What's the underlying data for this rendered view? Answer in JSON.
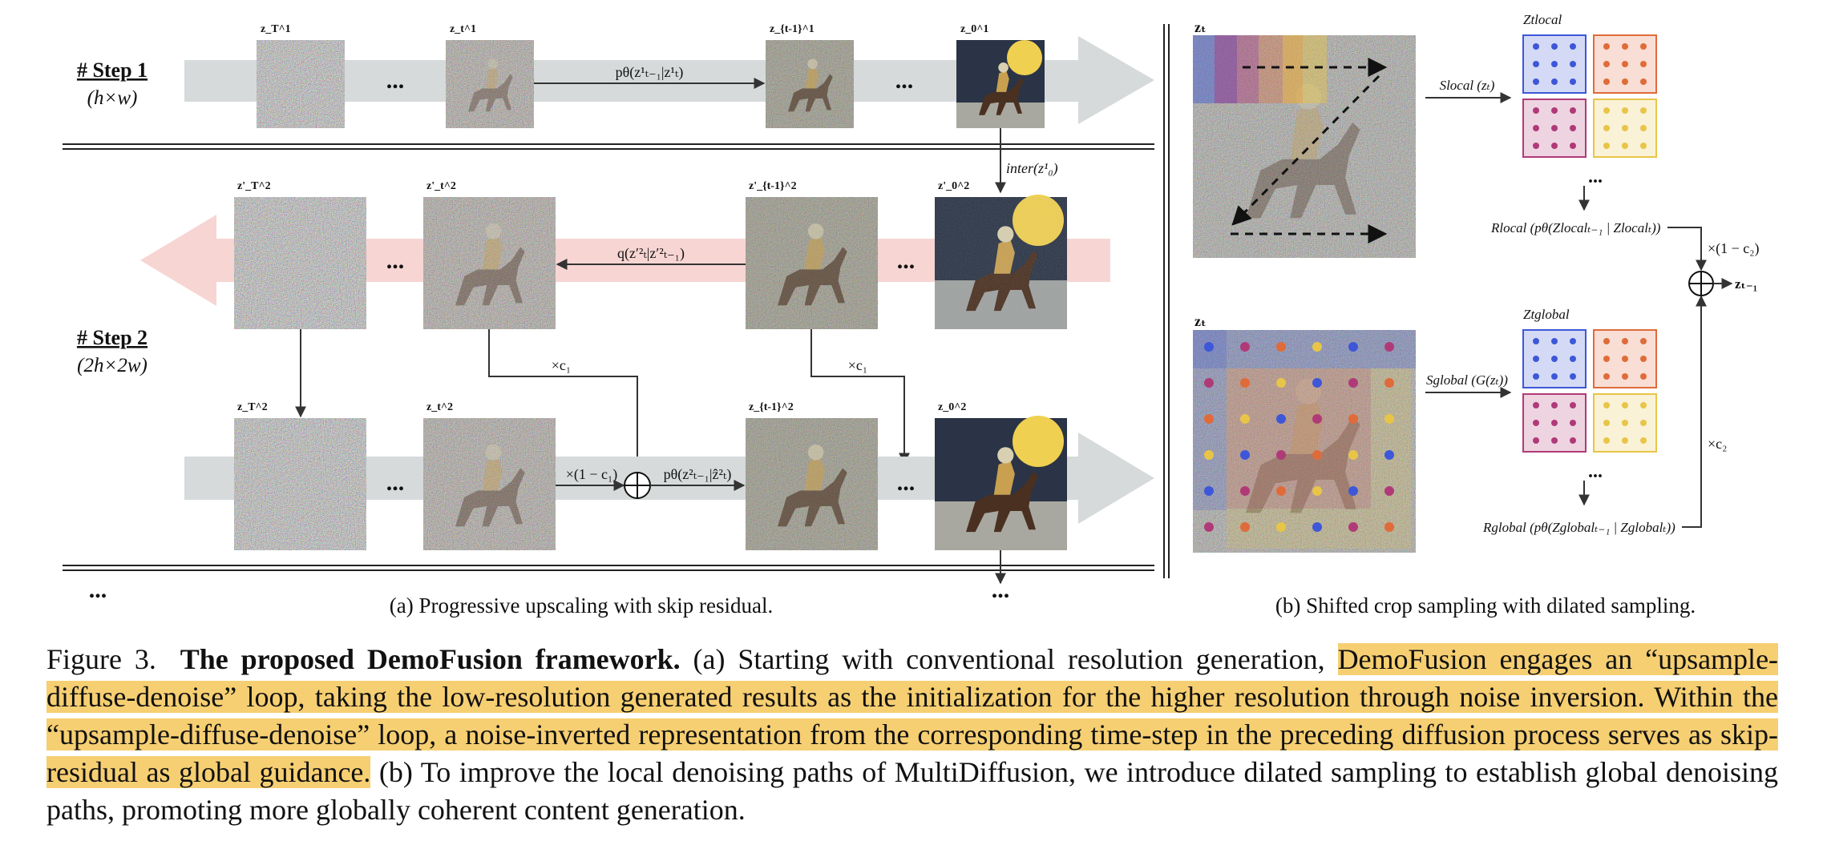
{
  "panel_a": {
    "step1": {
      "title": "# Step 1",
      "size": "(h×w)"
    },
    "step2": {
      "title": "# Step 2",
      "size": "(2h×2w)"
    },
    "row1_labels": [
      "z_T^1",
      "z_t^1",
      "z_{t-1}^1",
      "z_0^1"
    ],
    "row2_labels": [
      "z'_T^2",
      "z'_t^2",
      "z'_{t-1}^2",
      "z'_0^2"
    ],
    "row3_labels": [
      "z_T^2",
      "z_t^2",
      "z_{t-1}^2",
      "z_0^2"
    ],
    "ops": {
      "p_step1": "pθ(z¹ₜ₋₁|z¹ₜ)",
      "inter": "inter(z¹₀)",
      "q_step": "q(z′²ₜ|z′²ₜ₋₁)",
      "p_step2": "pθ(z²ₜ₋₁|ẑ²ₜ)",
      "mult_c1": "×c₁",
      "mult_1_minus_c1": "×(1 − c₁)"
    },
    "ellipsis": "...",
    "caption": "(a) Progressive upscaling with skip residual."
  },
  "panel_b": {
    "zt_label": "zₜ",
    "top": {
      "op": "Slocal (zₜ)",
      "grid_label": "Ztlocal",
      "result": "Rlocal (pθ(Zlocalₜ₋₁ | Zlocalₜ))"
    },
    "bottom": {
      "op": "Sglobal (G(zₜ))",
      "grid_label": "Ztglobal",
      "result": "Rglobal (pθ(Zglobalₜ₋₁ | Zglobalₜ))"
    },
    "mult_1_minus_c2": "×(1 − c₂)",
    "mult_c2": "×c₂",
    "output": "zₜ₋₁",
    "caption": "(b) Shifted crop sampling with dilated sampling.",
    "colors": {
      "blue": "#3d57d8",
      "red": "#e06b3a",
      "purple": "#b03a78",
      "yellow": "#e8c547"
    }
  },
  "caption": {
    "figure_label": "Figure 3.",
    "title": "The proposed DemoFusion framework.",
    "text_before": "(a) Starting with conventional resolution generation,",
    "highlighted": "DemoFusion engages an “upsample-diffuse-denoise” loop, taking the low-resolution generated results as the initialization for the higher resolution through noise inversion. Within the “upsample-diffuse-denoise” loop, a noise-inverted representation from the corresponding time-step in the preceding diffusion process serves as skip-residual as global guidance.",
    "text_after": "(b) To improve the local denoising paths of MultiDiffusion, we introduce dilated sampling to establish global denoising paths, promoting more globally coherent content generation.",
    "highlight_color": "#f6cf72"
  }
}
